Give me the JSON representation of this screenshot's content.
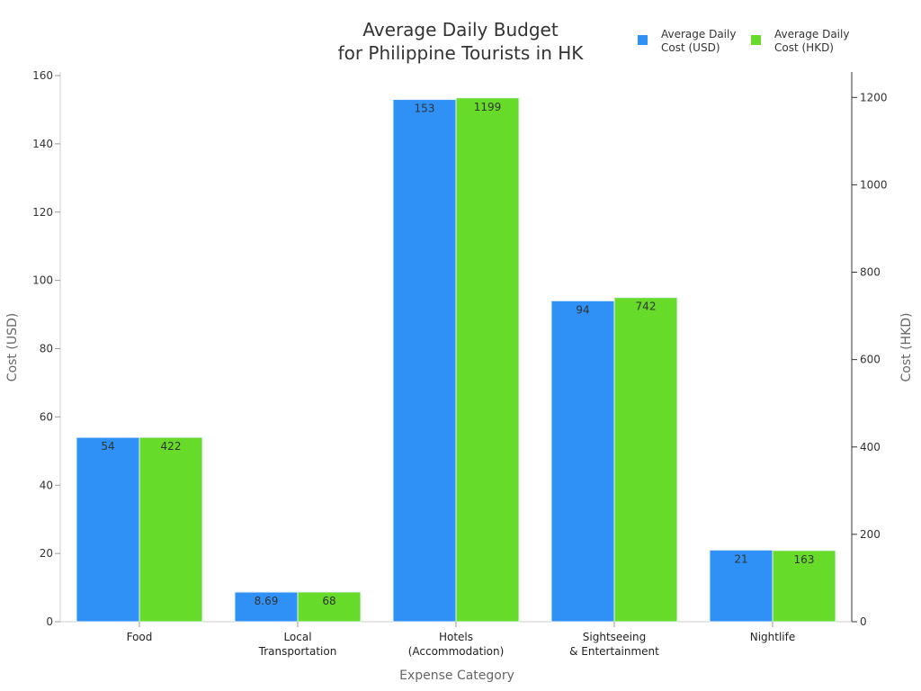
{
  "chart_data": {
    "type": "bar",
    "title": [
      "Average Daily Budget",
      "for Philippine Tourists in HK"
    ],
    "xlabel": "Expense Category",
    "ylabel": "Cost (USD)",
    "ylabel_right": "Cost (HKD)",
    "categories": [
      [
        "Food"
      ],
      [
        "Local",
        "Transportation"
      ],
      [
        "Hotels",
        "(Accommodation)"
      ],
      [
        "Sightseeing",
        "& Entertainment"
      ],
      [
        "Nightlife"
      ]
    ],
    "series": [
      {
        "name": [
          "Average Daily",
          "Cost (USD)"
        ],
        "axis": "left",
        "color": "#2f91f5",
        "values": [
          54,
          8.69,
          153,
          94,
          21
        ],
        "labels": [
          "54",
          "8.69",
          "153",
          "94",
          "21"
        ]
      },
      {
        "name": [
          "Average Daily",
          "Cost (HKD)"
        ],
        "axis": "right",
        "color": "#66db29",
        "values": [
          422,
          68,
          1199,
          742,
          163
        ],
        "labels": [
          "422",
          "68",
          "1199",
          "742",
          "163"
        ]
      }
    ],
    "ylim": [
      0,
      160
    ],
    "yticks": [
      0,
      20,
      40,
      60,
      80,
      100,
      120,
      140,
      160
    ],
    "ylim_right": [
      0,
      1250
    ],
    "yticks_right": [
      0,
      200,
      400,
      600,
      800,
      1000,
      1200
    ],
    "grid": false,
    "legend": "top-right"
  }
}
